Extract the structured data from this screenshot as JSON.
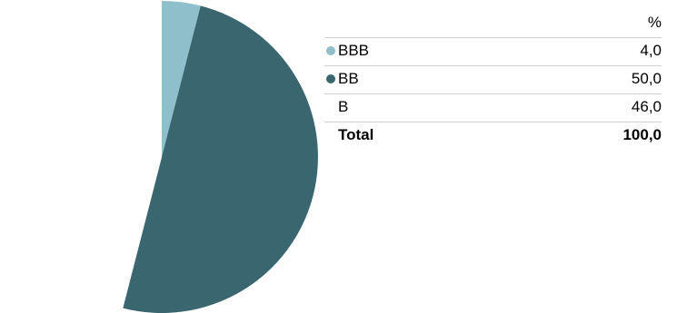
{
  "chart_data": {
    "type": "pie",
    "title": "",
    "value_header": "%",
    "slices": [
      {
        "label": "BBB",
        "value": 4.0,
        "display": "4,0",
        "color": "#8fbfcb",
        "show_marker": true
      },
      {
        "label": "BB",
        "value": 50.0,
        "display": "50,0",
        "color": "#3a6670",
        "show_marker": true
      },
      {
        "label": "B",
        "value": 46.0,
        "display": "46,0",
        "color": "#ffffff",
        "show_marker": false
      }
    ],
    "total": {
      "label": "Total",
      "display": "100,0"
    }
  }
}
